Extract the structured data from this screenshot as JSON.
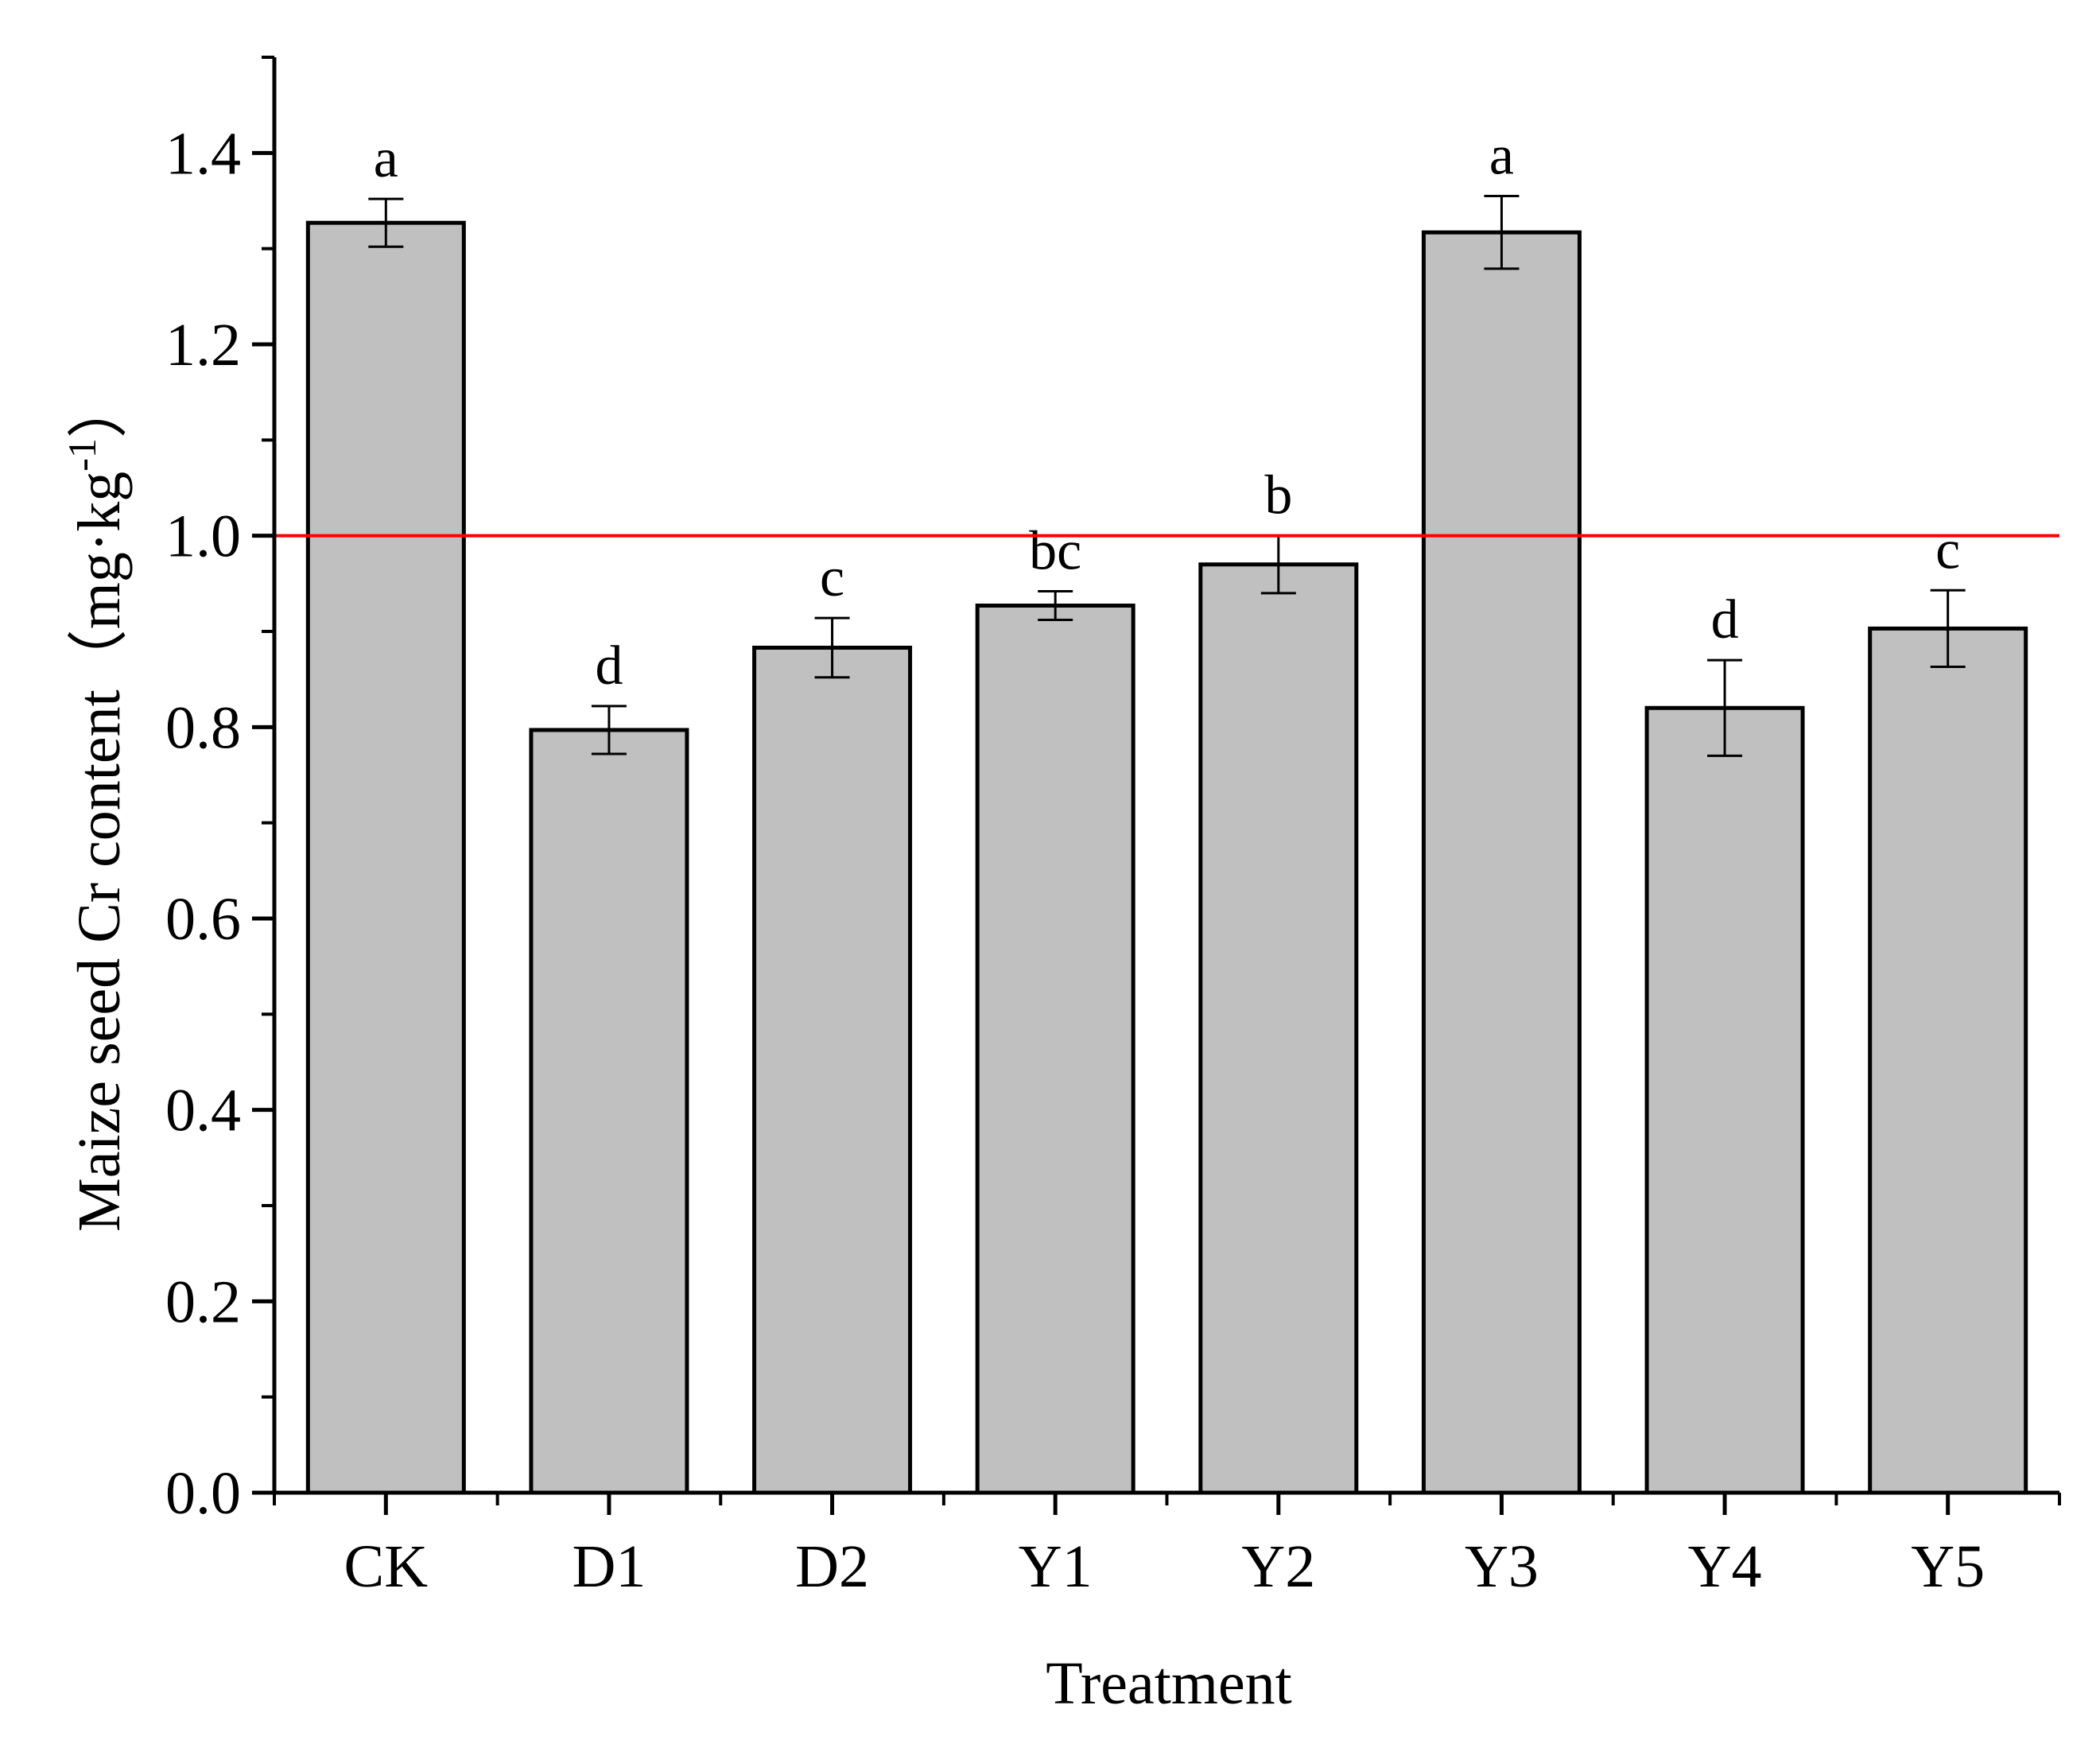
{
  "chart_data": {
    "type": "bar",
    "categories": [
      "CK",
      "D1",
      "D2",
      "Y1",
      "Y2",
      "Y3",
      "Y4",
      "Y5"
    ],
    "values": [
      1.327,
      0.797,
      0.883,
      0.927,
      0.97,
      1.317,
      0.82,
      0.903
    ],
    "errors": [
      0.025,
      0.025,
      0.031,
      0.015,
      0.03,
      0.038,
      0.05,
      0.04
    ],
    "significance": [
      "a",
      "d",
      "c",
      "bc",
      "b",
      "a",
      "d",
      "c"
    ],
    "xlabel": "Treatment",
    "ylabel": "Maize seed Cr content（mg·kg",
    "ylabel_superscript": "-1",
    "ylabel_suffix": "）",
    "ylim": [
      0,
      1.5
    ],
    "yticks": [
      0.0,
      0.2,
      0.4,
      0.6,
      0.8,
      1.0,
      1.2,
      1.4
    ],
    "ytick_labels": [
      "0.0",
      "0.2",
      "0.4",
      "0.6",
      "0.8",
      "1.0",
      "1.2",
      "1.4"
    ],
    "reference_line": {
      "y": 1.0,
      "color": "#ff0000"
    },
    "bar_color": "#c0c0c0",
    "bar_edge_color": "#000000",
    "grid": false,
    "legend": false
  }
}
